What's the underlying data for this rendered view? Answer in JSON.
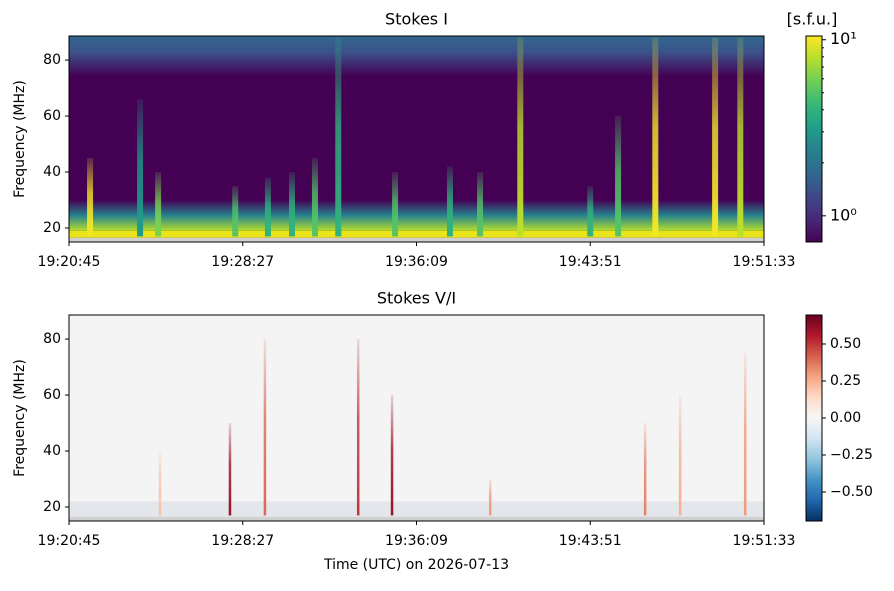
{
  "chart_data": [
    {
      "type": "spectrogram",
      "title": "Stokes I",
      "ylabel": "Frequency (MHz)",
      "xlim": [
        69645,
        71493
      ],
      "xticks": [
        {
          "value": 69645,
          "label": "19:20:45"
        },
        {
          "value": 70107,
          "label": "19:28:27"
        },
        {
          "value": 70569,
          "label": "19:36:09"
        },
        {
          "value": 71031,
          "label": "19:43:51"
        },
        {
          "value": 71493,
          "label": "19:51:33"
        }
      ],
      "ylim": [
        15,
        88.6
      ],
      "yticks": [
        20,
        40,
        60,
        80
      ],
      "colormap": "viridis",
      "color_scale": "log",
      "colorbar_label": "[s.f.u.]",
      "clim": [
        0.71,
        10.5
      ],
      "cticks": [
        {
          "value": 1,
          "label": "10⁰"
        },
        {
          "value": 10,
          "label": "10¹"
        }
      ],
      "x": [
        69701,
        69834,
        69882,
        70087,
        70174,
        70238,
        70299,
        70361,
        70512,
        70658,
        70738,
        70845,
        71031,
        71105,
        71204,
        71363,
        71430
      ],
      "freq_top": [
        45,
        66,
        40,
        35,
        38,
        40,
        45,
        88,
        40,
        42,
        40,
        88,
        35,
        60,
        88,
        88,
        88
      ],
      "values": [
        10,
        3,
        6,
        5,
        4,
        4,
        5,
        4,
        5,
        4,
        5,
        8,
        4,
        5,
        10,
        10,
        8
      ]
    },
    {
      "type": "spectrogram",
      "title": "Stokes V/I",
      "ylabel": "Frequency (MHz)",
      "xlabel": "Time (UTC) on 2026-07-13",
      "xlim": [
        69645,
        71493
      ],
      "xticks": [
        {
          "value": 69645,
          "label": "19:20:45"
        },
        {
          "value": 70107,
          "label": "19:28:27"
        },
        {
          "value": 70569,
          "label": "19:36:09"
        },
        {
          "value": 71031,
          "label": "19:43:51"
        },
        {
          "value": 71493,
          "label": "19:51:33"
        }
      ],
      "ylim": [
        15,
        88.6
      ],
      "yticks": [
        20,
        40,
        60,
        80
      ],
      "colormap": "RdBu_r",
      "color_scale": "linear",
      "clim": [
        -0.696,
        0.696
      ],
      "cticks": [
        {
          "value": -0.5,
          "label": "−0.50"
        },
        {
          "value": -0.25,
          "label": "−0.25"
        },
        {
          "value": 0,
          "label": "0.00"
        },
        {
          "value": 0.25,
          "label": "0.25"
        },
        {
          "value": 0.5,
          "label": "0.50"
        }
      ],
      "x": [
        69887,
        70073,
        70166,
        70414,
        70504,
        70765,
        71177,
        71270,
        71443
      ],
      "freq_top": [
        40,
        50,
        80,
        80,
        60,
        30,
        50,
        60,
        75
      ],
      "values": [
        0.2,
        0.6,
        0.4,
        0.5,
        0.6,
        0.3,
        0.35,
        0.25,
        0.3
      ]
    }
  ]
}
